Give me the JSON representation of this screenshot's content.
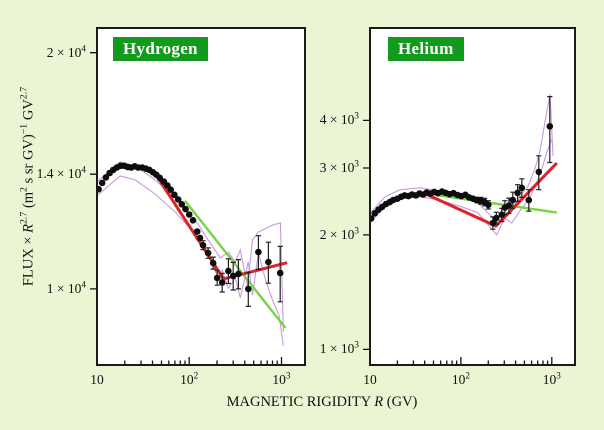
{
  "background_color": "#eaf6d3",
  "figure": {
    "xlabel": {
      "prefix": "MAGNETIC RIGIDITY ",
      "symbol": "R",
      "suffix": " (GV)"
    },
    "ylabel": {
      "p1": "FLUX × ",
      "sym1": "R",
      "sup1": "2.7",
      "p2": " (m",
      "sup2": "2",
      "p3": " s sr GV)",
      "sup3": "−1",
      "p4": " GV",
      "sup4": "2.7"
    }
  },
  "colors": {
    "fit_line": "#dd2327",
    "extrapolation_line": "#74d73e",
    "uncertainty_band": "#c79ade",
    "data_point": "#0d0d0d",
    "error_bar": "#222222",
    "panel_bg": "#ffffff",
    "panel_border": "#1a1a1a",
    "title_bg": "#13991b",
    "title_text": "#ffffff",
    "tick": "#111111"
  },
  "chart_data": [
    {
      "type": "scatter",
      "title": "Hydrogen",
      "xscale": "log",
      "yscale": "log",
      "xlim": [
        10,
        1800
      ],
      "ylim": [
        8000,
        21500
      ],
      "x_ticks": [
        {
          "v": 10,
          "base": "10",
          "exp": ""
        },
        {
          "v": 100,
          "base": "10",
          "exp": "2"
        },
        {
          "v": 1000,
          "base": "10",
          "exp": "3"
        }
      ],
      "y_ticks": [
        {
          "v": 10000,
          "base": "1 × 10",
          "exp": "4"
        },
        {
          "v": 14000,
          "base": "1.4 × 10",
          "exp": "4"
        },
        {
          "v": 20000,
          "base": "2 × 10",
          "exp": "4"
        }
      ],
      "points": [
        [
          10.4,
          13400,
          0
        ],
        [
          11.4,
          13650,
          0
        ],
        [
          12.5,
          13870,
          0
        ],
        [
          13.7,
          14050,
          0
        ],
        [
          15,
          14180,
          0
        ],
        [
          16.4,
          14280,
          0
        ],
        [
          18,
          14350,
          0
        ],
        [
          19.7,
          14350,
          0
        ],
        [
          21.5,
          14300,
          0
        ],
        [
          23.5,
          14280,
          0
        ],
        [
          25.7,
          14330,
          0
        ],
        [
          28,
          14280,
          0
        ],
        [
          31,
          14280,
          0
        ],
        [
          34,
          14230,
          0
        ],
        [
          37,
          14180,
          0
        ],
        [
          40.5,
          14080,
          0
        ],
        [
          44,
          13980,
          0
        ],
        [
          48,
          13850,
          0
        ],
        [
          53,
          13700,
          0
        ],
        [
          58,
          13550,
          0
        ],
        [
          63,
          13380,
          0
        ],
        [
          69,
          13180,
          0
        ],
        [
          76,
          13000,
          0
        ],
        [
          83,
          12820,
          0
        ],
        [
          91,
          12640,
          0
        ],
        [
          100,
          12440,
          0
        ],
        [
          110,
          12230,
          0
        ],
        [
          122,
          11830,
          0
        ],
        [
          131,
          11610,
          0
        ],
        [
          141,
          11370,
          150
        ],
        [
          160,
          11110,
          170
        ],
        [
          182,
          10790,
          190
        ],
        [
          201,
          10330,
          220
        ],
        [
          228,
          10190,
          280
        ],
        [
          266,
          10540,
          380
        ],
        [
          300,
          10390,
          420
        ],
        [
          341,
          10450,
          450
        ],
        [
          437,
          10000,
          500
        ],
        [
          562,
          11140,
          550
        ],
        [
          721,
          10820,
          650
        ],
        [
          970,
          10480,
          850
        ]
      ],
      "fit_line": [
        [
          45,
          13900
        ],
        [
          236,
          10300
        ],
        [
          1150,
          10800
        ]
      ],
      "extrapolation_line": [
        [
          90,
          12950
        ],
        [
          1104,
          8920
        ]
      ],
      "band_upper": [
        [
          10,
          13690
        ],
        [
          17.8,
          14520
        ],
        [
          25.9,
          14350
        ],
        [
          42.7,
          13770
        ],
        [
          70.5,
          13060
        ],
        [
          116,
          12240
        ],
        [
          169,
          11440
        ],
        [
          217,
          10950
        ],
        [
          265,
          11140
        ],
        [
          315,
          10830
        ],
        [
          358,
          11210
        ],
        [
          428,
          10050
        ],
        [
          485,
          11540
        ],
        [
          563,
          11820
        ],
        [
          800,
          12060
        ],
        [
          975,
          12140
        ],
        [
          1050,
          8815
        ]
      ],
      "band_lower": [
        [
          10,
          13140
        ],
        [
          17.8,
          13930
        ],
        [
          25.9,
          13770
        ],
        [
          42.7,
          13210
        ],
        [
          70.5,
          12530
        ],
        [
          116,
          11750
        ],
        [
          169,
          10950
        ],
        [
          206,
          10330
        ],
        [
          228,
          10570
        ],
        [
          265,
          10020
        ],
        [
          315,
          10330
        ],
        [
          358,
          9740
        ],
        [
          437,
          10830
        ],
        [
          485,
          9820
        ],
        [
          563,
          11110
        ],
        [
          672,
          10270
        ],
        [
          800,
          9680
        ],
        [
          940,
          9260
        ],
        [
          1050,
          8460
        ]
      ]
    },
    {
      "type": "scatter",
      "title": "Helium",
      "xscale": "log",
      "yscale": "log",
      "xlim": [
        10,
        1800
      ],
      "ylim": [
        910,
        7000
      ],
      "x_ticks": [
        {
          "v": 10,
          "base": "10",
          "exp": ""
        },
        {
          "v": 100,
          "base": "10",
          "exp": "2"
        },
        {
          "v": 1000,
          "base": "10",
          "exp": "3"
        }
      ],
      "y_ticks": [
        {
          "v": 1000,
          "base": "1 × 10",
          "exp": "3"
        },
        {
          "v": 2000,
          "base": "2 × 10",
          "exp": "3"
        },
        {
          "v": 3000,
          "base": "3 × 10",
          "exp": "3"
        },
        {
          "v": 4000,
          "base": "4 × 10",
          "exp": "3"
        }
      ],
      "points": [
        [
          10.3,
          2210,
          0
        ],
        [
          11.3,
          2280,
          0
        ],
        [
          12.4,
          2330,
          0
        ],
        [
          13.6,
          2370,
          0
        ],
        [
          15,
          2410,
          0
        ],
        [
          16.5,
          2440,
          0
        ],
        [
          18,
          2470,
          0
        ],
        [
          20,
          2490,
          0
        ],
        [
          22,
          2520,
          0
        ],
        [
          24,
          2540,
          0
        ],
        [
          26.5,
          2530,
          0
        ],
        [
          29,
          2555,
          0
        ],
        [
          32,
          2540,
          0
        ],
        [
          35,
          2570,
          0
        ],
        [
          38.5,
          2555,
          0
        ],
        [
          42,
          2585,
          0
        ],
        [
          46.5,
          2570,
          0
        ],
        [
          51,
          2595,
          0
        ],
        [
          56,
          2575,
          0
        ],
        [
          62,
          2600,
          0
        ],
        [
          68,
          2580,
          0
        ],
        [
          75,
          2560,
          0
        ],
        [
          83,
          2575,
          0
        ],
        [
          92,
          2545,
          0
        ],
        [
          101,
          2530,
          0
        ],
        [
          112,
          2550,
          0
        ],
        [
          123,
          2510,
          0
        ],
        [
          136,
          2490,
          0
        ],
        [
          150,
          2470,
          40
        ],
        [
          165,
          2460,
          50
        ],
        [
          182,
          2440,
          55
        ],
        [
          200,
          2400,
          60
        ],
        [
          225,
          2150,
          80
        ],
        [
          245,
          2215,
          80
        ],
        [
          282,
          2260,
          90
        ],
        [
          305,
          2360,
          100
        ],
        [
          337,
          2390,
          110
        ],
        [
          372,
          2470,
          120
        ],
        [
          420,
          2580,
          130
        ],
        [
          468,
          2660,
          150
        ],
        [
          558,
          2470,
          160
        ],
        [
          720,
          2930,
          300
        ],
        [
          950,
          3860,
          760
        ]
      ],
      "fit_line": [
        [
          40,
          2570
        ],
        [
          243,
          2110
        ],
        [
          1135,
          3090
        ]
      ],
      "extrapolation_line": [
        [
          52,
          2550
        ],
        [
          1135,
          2290
        ]
      ],
      "band_upper": [
        [
          10,
          2275
        ],
        [
          14.6,
          2520
        ],
        [
          21.4,
          2630
        ],
        [
          35.4,
          2660
        ],
        [
          58.8,
          2610
        ],
        [
          97.5,
          2520
        ],
        [
          153,
          2430
        ],
        [
          208,
          2260
        ],
        [
          243,
          2170
        ],
        [
          305,
          2400
        ],
        [
          363,
          2340
        ],
        [
          445,
          2520
        ],
        [
          545,
          2680
        ],
        [
          650,
          2980
        ],
        [
          740,
          3320
        ],
        [
          845,
          3980
        ],
        [
          955,
          4690
        ],
        [
          1030,
          3230
        ]
      ],
      "band_lower": [
        [
          10,
          2150
        ],
        [
          14.6,
          2380
        ],
        [
          21.4,
          2490
        ],
        [
          35.4,
          2520
        ],
        [
          58.8,
          2470
        ],
        [
          97.5,
          2380
        ],
        [
          153,
          2290
        ],
        [
          208,
          2100
        ],
        [
          247,
          2000
        ],
        [
          305,
          2210
        ],
        [
          363,
          2150
        ],
        [
          445,
          2310
        ],
        [
          545,
          2460
        ],
        [
          663,
          2690
        ],
        [
          775,
          2980
        ],
        [
          890,
          3320
        ],
        [
          1010,
          3590
        ]
      ]
    }
  ]
}
